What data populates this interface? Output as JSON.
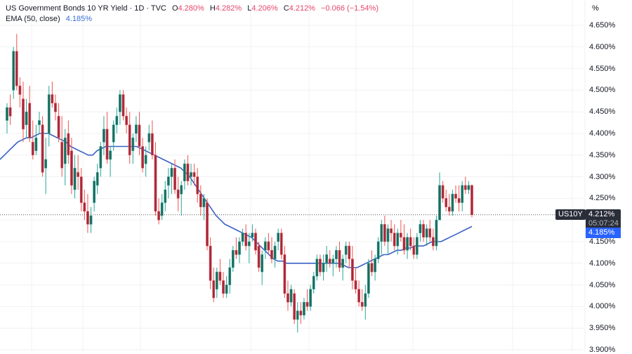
{
  "header": {
    "title": "US Government Bonds 10 YR Yield · 1D · TVC",
    "open_label": "O",
    "open": "4.280%",
    "high_label": "H",
    "high": "4.282%",
    "low_label": "L",
    "low": "4.206%",
    "close_label": "C",
    "close": "4.212%",
    "change": "−0.066 (−1.54%)",
    "ema_label": "EMA (50, close)",
    "ema_value": "4.185%"
  },
  "axis": {
    "unit": "%",
    "ticks": [
      "4.650%",
      "4.600%",
      "4.550%",
      "4.500%",
      "4.450%",
      "4.400%",
      "4.350%",
      "4.300%",
      "4.250%",
      "4.200%",
      "4.150%",
      "4.100%",
      "4.050%",
      "4.000%",
      "3.950%",
      "3.900%"
    ]
  },
  "price_scale": {
    "symbol": "US10Y",
    "last_price": "4.212%",
    "countdown": "05:07:24",
    "ema_price": "4.185%"
  },
  "colors": {
    "up": "#1e6b5c",
    "down": "#a3293f",
    "up_wick": "#26a69a",
    "down_wick": "#ef5350",
    "ema": "#3a62c4",
    "grid": "#f0f1f3",
    "last_price_bg": "#2a2e39",
    "ema_tag_bg": "#2962ff",
    "ohlc_text": "#e5466a"
  },
  "chart_data": {
    "type": "candlestick",
    "title": "US Government Bonds 10 YR Yield · 1D · TVC",
    "ylabel": "%",
    "ylim": [
      3.9,
      4.66
    ],
    "y_ticks": [
      4.65,
      4.6,
      4.55,
      4.5,
      4.45,
      4.4,
      4.35,
      4.3,
      4.25,
      4.2,
      4.15,
      4.1,
      4.05,
      4.0,
      3.95,
      3.9
    ],
    "last_price": 4.212,
    "indicator": {
      "name": "EMA (50, close)",
      "last": 4.185
    },
    "ohlc": [
      [
        4.43,
        4.47,
        4.4,
        4.46
      ],
      [
        4.46,
        4.49,
        4.42,
        4.44
      ],
      [
        4.5,
        4.6,
        4.48,
        4.59
      ],
      [
        4.59,
        4.63,
        4.5,
        4.51
      ],
      [
        4.51,
        4.53,
        4.46,
        4.49
      ],
      [
        4.48,
        4.52,
        4.38,
        4.41
      ],
      [
        4.42,
        4.48,
        4.39,
        4.45
      ],
      [
        4.47,
        4.51,
        4.38,
        4.39
      ],
      [
        4.38,
        4.43,
        4.34,
        4.35
      ],
      [
        4.36,
        4.42,
        4.35,
        4.39
      ],
      [
        4.42,
        4.45,
        4.4,
        4.43
      ],
      [
        4.42,
        4.44,
        4.3,
        4.31
      ],
      [
        4.32,
        4.39,
        4.26,
        4.34
      ],
      [
        4.4,
        4.51,
        4.37,
        4.49
      ],
      [
        4.49,
        4.52,
        4.46,
        4.47
      ],
      [
        4.47,
        4.49,
        4.43,
        4.45
      ],
      [
        4.44,
        4.47,
        4.38,
        4.39
      ],
      [
        4.38,
        4.44,
        4.3,
        4.32
      ],
      [
        4.33,
        4.41,
        4.28,
        4.39
      ],
      [
        4.4,
        4.43,
        4.33,
        4.35
      ],
      [
        4.36,
        4.39,
        4.26,
        4.28
      ],
      [
        4.27,
        4.35,
        4.25,
        4.32
      ],
      [
        4.31,
        4.35,
        4.27,
        4.3
      ],
      [
        4.3,
        4.32,
        4.22,
        4.24
      ],
      [
        4.24,
        4.27,
        4.2,
        4.22
      ],
      [
        4.22,
        4.26,
        4.17,
        4.19
      ],
      [
        4.19,
        4.23,
        4.17,
        4.21
      ],
      [
        4.24,
        4.3,
        4.22,
        4.29
      ],
      [
        4.28,
        4.33,
        4.26,
        4.31
      ],
      [
        4.32,
        4.38,
        4.3,
        4.37
      ],
      [
        4.38,
        4.44,
        4.35,
        4.41
      ],
      [
        4.41,
        4.45,
        4.33,
        4.34
      ],
      [
        4.34,
        4.37,
        4.3,
        4.36
      ],
      [
        4.38,
        4.43,
        4.36,
        4.42
      ],
      [
        4.42,
        4.46,
        4.4,
        4.44
      ],
      [
        4.45,
        4.5,
        4.42,
        4.49
      ],
      [
        4.49,
        4.5,
        4.43,
        4.44
      ],
      [
        4.44,
        4.46,
        4.4,
        4.42
      ],
      [
        4.42,
        4.45,
        4.33,
        4.35
      ],
      [
        4.36,
        4.4,
        4.33,
        4.39
      ],
      [
        4.4,
        4.44,
        4.38,
        4.42
      ],
      [
        4.42,
        4.45,
        4.35,
        4.37
      ],
      [
        4.37,
        4.39,
        4.31,
        4.32
      ],
      [
        4.33,
        4.37,
        4.3,
        4.35
      ],
      [
        4.38,
        4.42,
        4.36,
        4.4
      ],
      [
        4.4,
        4.43,
        4.34,
        4.35
      ],
      [
        4.35,
        4.38,
        4.21,
        4.22
      ],
      [
        4.22,
        4.25,
        4.19,
        4.2
      ],
      [
        4.21,
        4.26,
        4.2,
        4.24
      ],
      [
        4.24,
        4.29,
        4.22,
        4.27
      ],
      [
        4.28,
        4.32,
        4.25,
        4.3
      ],
      [
        4.3,
        4.33,
        4.26,
        4.32
      ],
      [
        4.32,
        4.34,
        4.26,
        4.27
      ],
      [
        4.27,
        4.3,
        4.22,
        4.25
      ],
      [
        4.26,
        4.29,
        4.21,
        4.28
      ],
      [
        4.29,
        4.34,
        4.27,
        4.33
      ],
      [
        4.33,
        4.35,
        4.28,
        4.29
      ],
      [
        4.3,
        4.33,
        4.28,
        4.31
      ],
      [
        4.31,
        4.33,
        4.28,
        4.3
      ],
      [
        4.3,
        4.32,
        4.24,
        4.26
      ],
      [
        4.26,
        4.28,
        4.21,
        4.23
      ],
      [
        4.23,
        4.26,
        4.2,
        4.25
      ],
      [
        4.24,
        4.25,
        4.13,
        4.14
      ],
      [
        4.14,
        4.16,
        4.04,
        4.06
      ],
      [
        4.06,
        4.09,
        4.01,
        4.02
      ],
      [
        4.04,
        4.09,
        4.02,
        4.08
      ],
      [
        4.08,
        4.11,
        4.05,
        4.06
      ],
      [
        4.06,
        4.08,
        4.02,
        4.03
      ],
      [
        4.03,
        4.07,
        4.02,
        4.05
      ],
      [
        4.05,
        4.11,
        4.03,
        4.09
      ],
      [
        4.09,
        4.14,
        4.08,
        4.13
      ],
      [
        4.13,
        4.16,
        4.11,
        4.12
      ],
      [
        4.12,
        4.16,
        4.1,
        4.15
      ],
      [
        4.15,
        4.18,
        4.14,
        4.17
      ],
      [
        4.17,
        4.19,
        4.13,
        4.14
      ],
      [
        4.14,
        4.17,
        4.1,
        4.15
      ],
      [
        4.16,
        4.19,
        4.15,
        4.17
      ],
      [
        4.17,
        4.18,
        4.12,
        4.13
      ],
      [
        4.14,
        4.15,
        4.08,
        4.09
      ],
      [
        4.08,
        4.13,
        4.05,
        4.12
      ],
      [
        4.13,
        4.16,
        4.11,
        4.15
      ],
      [
        4.15,
        4.17,
        4.12,
        4.13
      ],
      [
        4.13,
        4.16,
        4.1,
        4.11
      ],
      [
        4.11,
        4.15,
        4.09,
        4.14
      ],
      [
        4.15,
        4.18,
        4.13,
        4.17
      ],
      [
        4.17,
        4.18,
        4.11,
        4.12
      ],
      [
        4.12,
        4.14,
        4.02,
        4.03
      ],
      [
        4.03,
        4.06,
        3.99,
        4.01
      ],
      [
        4.01,
        4.05,
        4.0,
        4.04
      ],
      [
        4.03,
        4.04,
        3.96,
        3.97
      ],
      [
        3.97,
        4.01,
        3.94,
        3.99
      ],
      [
        3.99,
        4.01,
        3.96,
        3.98
      ],
      [
        3.98,
        4.02,
        3.97,
        4.01
      ],
      [
        4.01,
        4.04,
        3.99,
        4.0
      ],
      [
        4.0,
        4.05,
        3.99,
        4.04
      ],
      [
        4.04,
        4.08,
        4.03,
        4.07
      ],
      [
        4.07,
        4.12,
        4.06,
        4.11
      ],
      [
        4.11,
        4.12,
        4.07,
        4.08
      ],
      [
        4.08,
        4.12,
        4.06,
        4.1
      ],
      [
        4.1,
        4.14,
        4.08,
        4.12
      ],
      [
        4.11,
        4.13,
        4.09,
        4.1
      ],
      [
        4.1,
        4.12,
        4.07,
        4.11
      ],
      [
        4.11,
        4.14,
        4.09,
        4.13
      ],
      [
        4.13,
        4.15,
        4.08,
        4.09
      ],
      [
        4.09,
        4.12,
        4.06,
        4.11
      ],
      [
        4.12,
        4.15,
        4.1,
        4.14
      ],
      [
        4.14,
        4.15,
        4.09,
        4.11
      ],
      [
        4.11,
        4.14,
        4.04,
        4.06
      ],
      [
        4.06,
        4.09,
        4.03,
        4.04
      ],
      [
        4.04,
        4.06,
        4.0,
        4.01
      ],
      [
        4.01,
        4.04,
        3.99,
        4.0
      ],
      [
        4.0,
        4.05,
        3.97,
        4.03
      ],
      [
        4.03,
        4.11,
        4.02,
        4.1
      ],
      [
        4.1,
        4.13,
        4.07,
        4.08
      ],
      [
        4.08,
        4.12,
        4.06,
        4.11
      ],
      [
        4.11,
        4.16,
        4.1,
        4.15
      ],
      [
        4.15,
        4.2,
        4.12,
        4.19
      ],
      [
        4.19,
        4.21,
        4.14,
        4.15
      ],
      [
        4.15,
        4.19,
        4.12,
        4.18
      ],
      [
        4.18,
        4.2,
        4.15,
        4.17
      ],
      [
        4.17,
        4.19,
        4.13,
        4.14
      ],
      [
        4.14,
        4.18,
        4.12,
        4.17
      ],
      [
        4.17,
        4.2,
        4.15,
        4.16
      ],
      [
        4.16,
        4.19,
        4.12,
        4.13
      ],
      [
        4.13,
        4.17,
        4.11,
        4.16
      ],
      [
        4.16,
        4.18,
        4.13,
        4.14
      ],
      [
        4.14,
        4.16,
        4.11,
        4.12
      ],
      [
        4.12,
        4.17,
        4.11,
        4.16
      ],
      [
        4.17,
        4.2,
        4.15,
        4.19
      ],
      [
        4.19,
        4.2,
        4.15,
        4.16
      ],
      [
        4.16,
        4.19,
        4.14,
        4.18
      ],
      [
        4.18,
        4.2,
        4.15,
        4.16
      ],
      [
        4.16,
        4.18,
        4.13,
        4.14
      ],
      [
        4.14,
        4.21,
        4.13,
        4.2
      ],
      [
        4.2,
        4.31,
        4.2,
        4.28
      ],
      [
        4.28,
        4.29,
        4.24,
        4.25
      ],
      [
        4.25,
        4.27,
        4.22,
        4.23
      ],
      [
        4.23,
        4.26,
        4.21,
        4.22
      ],
      [
        4.22,
        4.27,
        4.21,
        4.26
      ],
      [
        4.26,
        4.28,
        4.24,
        4.25
      ],
      [
        4.25,
        4.28,
        4.22,
        4.24
      ],
      [
        4.24,
        4.29,
        4.22,
        4.28
      ],
      [
        4.28,
        4.3,
        4.26,
        4.27
      ],
      [
        4.27,
        4.29,
        4.26,
        4.28
      ],
      [
        4.28,
        4.282,
        4.206,
        4.212
      ]
    ],
    "ema": [
      4.34,
      4.35,
      4.36,
      4.37,
      4.38,
      4.385,
      4.39,
      4.39,
      4.395,
      4.4,
      4.4,
      4.4,
      4.395,
      4.39,
      4.385,
      4.38,
      4.37,
      4.365,
      4.36,
      4.355,
      4.35,
      4.35,
      4.36,
      4.365,
      4.37,
      4.37,
      4.37,
      4.37,
      4.37,
      4.37,
      4.37,
      4.37,
      4.365,
      4.36,
      4.355,
      4.35,
      4.345,
      4.34,
      4.335,
      4.33,
      4.325,
      4.32,
      4.31,
      4.3,
      4.285,
      4.27,
      4.255,
      4.24,
      4.225,
      4.21,
      4.2,
      4.19,
      4.185,
      4.18,
      4.175,
      4.17,
      4.165,
      4.16,
      4.15,
      4.14,
      4.13,
      4.12,
      4.11,
      4.105,
      4.105,
      4.1,
      4.1,
      4.1,
      4.1,
      4.1,
      4.1,
      4.1,
      4.1,
      4.1,
      4.1,
      4.1,
      4.1,
      4.1,
      4.095,
      4.09,
      4.09,
      4.09,
      4.095,
      4.1,
      4.105,
      4.11,
      4.115,
      4.12,
      4.12,
      4.125,
      4.13,
      4.13,
      4.135,
      4.135,
      4.14,
      4.14,
      4.14,
      4.145,
      4.15,
      4.15,
      4.15,
      4.155,
      4.16,
      4.165,
      4.17,
      4.175,
      4.18,
      4.185
    ]
  }
}
